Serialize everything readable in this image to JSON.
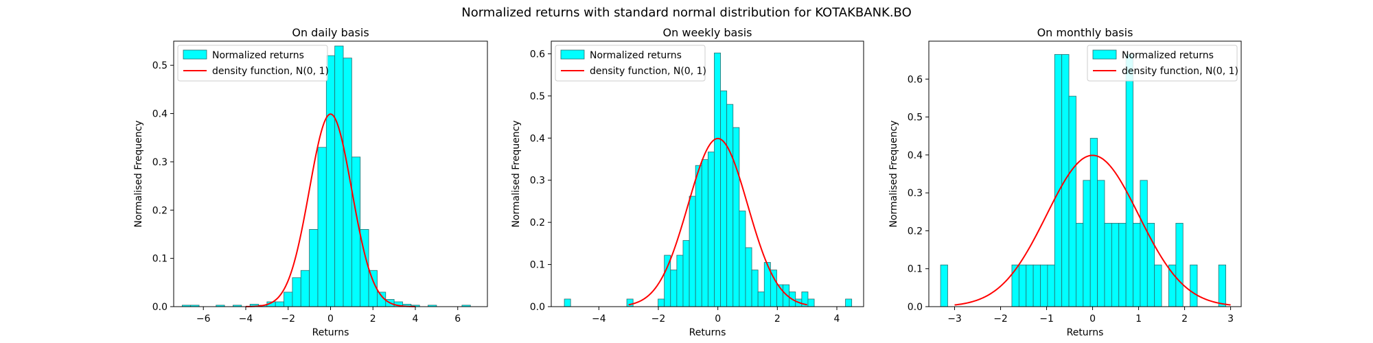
{
  "figure": {
    "title": "Normalized returns with standard normal distribution for KOTAKBANK.BO"
  },
  "chart_data": [
    {
      "type": "bar",
      "title": "On daily basis",
      "xlabel": "Returns",
      "ylabel": "Normalised Frequency",
      "xlim": [
        -7.4,
        7.4
      ],
      "ylim": [
        0,
        0.55
      ],
      "xticks": [
        -6,
        -4,
        -2,
        0,
        2,
        4,
        6
      ],
      "yticks": [
        0.0,
        0.1,
        0.2,
        0.3,
        0.4,
        0.5
      ],
      "ytick_labels": [
        "0.0",
        "0.1",
        "0.2",
        "0.3",
        "0.4",
        "0.5"
      ],
      "bin_edges": [
        -7.0,
        -6.6,
        -6.2,
        -5.8,
        -5.4,
        -5.0,
        -4.6,
        -4.2,
        -3.8,
        -3.4,
        -3.0,
        -2.6,
        -2.2,
        -1.8,
        -1.4,
        -1.0,
        -0.6,
        -0.2,
        0.2,
        0.6,
        1.0,
        1.4,
        1.8,
        2.2,
        2.6,
        3.0,
        3.4,
        3.8,
        4.2,
        4.6,
        5.0,
        5.4,
        5.8,
        6.2,
        6.6
      ],
      "values": [
        0.003,
        0.003,
        0,
        0,
        0.003,
        0,
        0.003,
        0,
        0.005,
        0.003,
        0.01,
        0.01,
        0.03,
        0.06,
        0.075,
        0.16,
        0.33,
        0.52,
        0.54,
        0.515,
        0.31,
        0.16,
        0.075,
        0.03,
        0.015,
        0.01,
        0.005,
        0.003,
        0,
        0.003,
        0,
        0,
        0,
        0.003
      ],
      "legend": {
        "position": "upper-left",
        "entries": [
          "Normalized returns",
          "density function, N(0, 1)"
        ]
      },
      "density_range": [
        -4,
        4
      ]
    },
    {
      "type": "bar",
      "title": "On weekly basis",
      "xlabel": "Returns",
      "ylabel": "Normalised Frequency",
      "xlim": [
        -5.6,
        4.9
      ],
      "ylim": [
        0,
        0.63
      ],
      "xticks": [
        -4,
        -2,
        0,
        2,
        4
      ],
      "yticks": [
        0.0,
        0.1,
        0.2,
        0.3,
        0.4,
        0.5,
        0.6
      ],
      "ytick_labels": [
        "0.0",
        "0.1",
        "0.2",
        "0.3",
        "0.4",
        "0.5",
        "0.6"
      ],
      "bin_edges": [
        -5.16,
        -4.95,
        -4.74,
        -4.53,
        -4.32,
        -4.11,
        -3.9,
        -3.69,
        -3.48,
        -3.27,
        -3.06,
        -2.85,
        -2.64,
        -2.43,
        -2.22,
        -2.01,
        -1.8,
        -1.59,
        -1.38,
        -1.17,
        -0.96,
        -0.75,
        -0.54,
        -0.33,
        -0.12,
        0.09,
        0.3,
        0.51,
        0.72,
        0.93,
        1.14,
        1.35,
        1.56,
        1.77,
        1.98,
        2.19,
        2.4,
        2.61,
        2.82,
        3.03,
        3.24,
        3.45,
        3.66,
        3.87,
        4.08,
        4.29,
        4.5
      ],
      "values": [
        0.018,
        0,
        0,
        0,
        0,
        0,
        0,
        0,
        0,
        0,
        0.018,
        0,
        0,
        0,
        0,
        0.018,
        0.122,
        0.087,
        0.122,
        0.157,
        0.262,
        0.335,
        0.349,
        0.367,
        0.602,
        0.512,
        0.48,
        0.425,
        0.227,
        0.14,
        0.087,
        0.035,
        0.105,
        0.087,
        0.052,
        0.052,
        0.035,
        0.018,
        0.035,
        0.018,
        0,
        0,
        0,
        0,
        0,
        0.018
      ],
      "legend": {
        "position": "upper-left",
        "entries": [
          "Normalized returns",
          "density function, N(0, 1)"
        ]
      },
      "density_range": [
        -3,
        3
      ]
    },
    {
      "type": "bar",
      "title": "On monthly basis",
      "xlabel": "Returns",
      "ylabel": "Normalised Frequency",
      "xlim": [
        -3.56,
        3.23
      ],
      "ylim": [
        0,
        0.7
      ],
      "xticks": [
        -3,
        -2,
        -1,
        0,
        1,
        2,
        3
      ],
      "yticks": [
        0.0,
        0.1,
        0.2,
        0.3,
        0.4,
        0.5,
        0.6
      ],
      "ytick_labels": [
        "0.0",
        "0.1",
        "0.2",
        "0.3",
        "0.4",
        "0.5",
        "0.6"
      ],
      "bin_edges": [
        -3.305,
        -3.15,
        -2.995,
        -2.84,
        -2.685,
        -2.53,
        -2.375,
        -2.22,
        -2.065,
        -1.91,
        -1.755,
        -1.6,
        -1.445,
        -1.29,
        -1.135,
        -0.98,
        -0.825,
        -0.67,
        -0.515,
        -0.36,
        -0.205,
        -0.05,
        0.105,
        0.26,
        0.415,
        0.57,
        0.725,
        0.88,
        1.035,
        1.19,
        1.345,
        1.5,
        1.655,
        1.81,
        1.965,
        2.12,
        2.275,
        2.43,
        2.585,
        2.74,
        2.895
      ],
      "values": [
        0.11,
        0,
        0,
        0,
        0,
        0,
        0,
        0,
        0,
        0,
        0.11,
        0.11,
        0.11,
        0.11,
        0.11,
        0.11,
        0.665,
        0.665,
        0.555,
        0.22,
        0.333,
        0.444,
        0.333,
        0.22,
        0.22,
        0.22,
        0.665,
        0.22,
        0.333,
        0.22,
        0.11,
        0,
        0.11,
        0.22,
        0,
        0.11,
        0,
        0,
        0,
        0.11
      ],
      "legend": {
        "position": "upper-right",
        "entries": [
          "Normalized returns",
          "density function, N(0, 1)"
        ]
      },
      "density_range": [
        -3,
        3
      ]
    }
  ],
  "colors": {
    "bar_fill": "#00ffff",
    "bar_edge": "#2a6a6a",
    "density_line": "#ff0000",
    "axis": "#000000"
  }
}
